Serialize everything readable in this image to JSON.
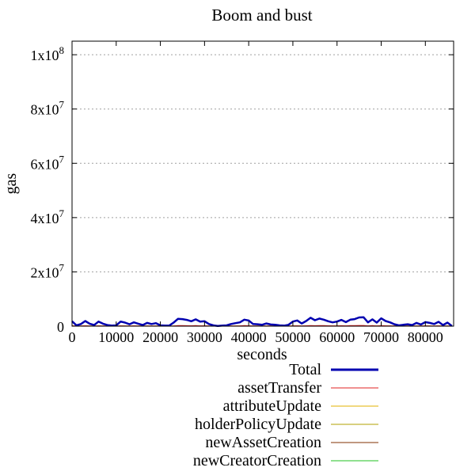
{
  "chart_data": {
    "type": "line",
    "title": "Boom and bust",
    "xlabel": "seconds",
    "ylabel": "gas",
    "xlim": [
      0,
      86400
    ],
    "ylim": [
      0,
      105000000
    ],
    "grid": {
      "y": true,
      "x": false
    },
    "legend_position": "bottom",
    "x_ticks": [
      {
        "value": 0,
        "label": "0"
      },
      {
        "value": 10000,
        "label": "10000"
      },
      {
        "value": 20000,
        "label": "20000"
      },
      {
        "value": 30000,
        "label": "30000"
      },
      {
        "value": 40000,
        "label": "40000"
      },
      {
        "value": 50000,
        "label": "50000"
      },
      {
        "value": 60000,
        "label": "60000"
      },
      {
        "value": 70000,
        "label": "70000"
      },
      {
        "value": 80000,
        "label": "80000"
      }
    ],
    "y_ticks": [
      {
        "value": 0,
        "base": "0",
        "exp": ""
      },
      {
        "value": 20000000,
        "base": "2x10",
        "exp": "7"
      },
      {
        "value": 40000000,
        "base": "4x10",
        "exp": "7"
      },
      {
        "value": 60000000,
        "base": "6x10",
        "exp": "7"
      },
      {
        "value": 80000000,
        "base": "8x10",
        "exp": "7"
      },
      {
        "value": 100000000,
        "base": "1x10",
        "exp": "8"
      }
    ],
    "x": [
      0,
      1000,
      2000,
      3000,
      4000,
      5000,
      6000,
      7000,
      8000,
      9000,
      10000,
      11000,
      12000,
      13000,
      14000,
      15000,
      16000,
      17000,
      18000,
      19000,
      20000,
      21000,
      22000,
      23000,
      24000,
      25000,
      26000,
      27000,
      28000,
      29000,
      30000,
      31000,
      32000,
      33000,
      34000,
      35000,
      36000,
      37000,
      38000,
      39000,
      40000,
      41000,
      42000,
      43000,
      44000,
      45000,
      46000,
      47000,
      48000,
      49000,
      50000,
      51000,
      52000,
      53000,
      54000,
      55000,
      56000,
      57000,
      58000,
      59000,
      60000,
      61000,
      62000,
      63000,
      64000,
      65000,
      66000,
      67000,
      68000,
      69000,
      70000,
      71000,
      72000,
      73000,
      74000,
      75000,
      76000,
      77000,
      78000,
      79000,
      80000,
      81000,
      82000,
      83000,
      84000,
      85000,
      86000
    ],
    "series": [
      {
        "name": "Total",
        "color": "#0000b0",
        "width": 2.5,
        "values": [
          1800000,
          300000,
          800000,
          1900000,
          900000,
          400000,
          1700000,
          900000,
          400000,
          200000,
          300000,
          1700000,
          1300000,
          700000,
          1400000,
          900000,
          400000,
          1200000,
          800000,
          1100000,
          300000,
          200000,
          200000,
          1300000,
          2700000,
          2600000,
          2300000,
          1800000,
          2500000,
          1700000,
          1800000,
          800000,
          300000,
          100000,
          200000,
          300000,
          800000,
          1100000,
          1400000,
          2400000,
          2100000,
          800000,
          700000,
          500000,
          1000000,
          600000,
          500000,
          300000,
          200000,
          500000,
          1700000,
          2100000,
          1000000,
          1900000,
          3100000,
          2200000,
          2800000,
          2400000,
          1800000,
          1400000,
          1700000,
          2300000,
          1500000,
          2400000,
          2600000,
          3200000,
          3300000,
          1400000,
          2500000,
          1300000,
          2900000,
          1900000,
          1400000,
          700000,
          300000,
          500000,
          700000,
          400000,
          1200000,
          600000,
          1500000,
          1200000,
          800000,
          1600000,
          400000,
          1300000,
          100000
        ]
      },
      {
        "name": "assetTransfer",
        "color": "#e02020",
        "width": 1,
        "values": [
          150000,
          20000,
          60000,
          150000,
          70000,
          30000,
          130000,
          70000,
          30000,
          15000,
          20000,
          130000,
          100000,
          50000,
          110000,
          70000,
          30000,
          90000,
          60000,
          85000,
          20000,
          15000,
          15000,
          100000,
          210000,
          200000,
          180000,
          140000,
          190000,
          130000,
          140000,
          60000,
          20000,
          8000,
          15000,
          20000,
          60000,
          85000,
          110000,
          190000,
          160000,
          60000,
          50000,
          40000,
          80000,
          50000,
          40000,
          20000,
          15000,
          40000,
          130000,
          160000,
          80000,
          150000,
          240000,
          170000,
          220000,
          190000,
          140000,
          110000,
          130000,
          180000,
          120000,
          190000,
          200000,
          250000,
          260000,
          110000,
          190000,
          100000,
          230000,
          150000,
          110000,
          50000,
          20000,
          40000,
          50000,
          30000,
          90000,
          50000,
          120000,
          90000,
          60000,
          120000,
          30000,
          100000,
          8000
        ]
      },
      {
        "name": "attributeUpdate",
        "color": "#e0b000",
        "width": 1,
        "values": [
          80000,
          10000,
          30000,
          80000,
          40000,
          15000,
          70000,
          40000,
          15000,
          8000,
          10000,
          70000,
          50000,
          30000,
          60000,
          40000,
          15000,
          50000,
          30000,
          45000,
          10000,
          8000,
          8000,
          50000,
          110000,
          100000,
          90000,
          70000,
          100000,
          70000,
          70000,
          30000,
          10000,
          4000,
          8000,
          10000,
          30000,
          45000,
          60000,
          100000,
          80000,
          30000,
          30000,
          20000,
          40000,
          25000,
          20000,
          10000,
          8000,
          20000,
          70000,
          80000,
          40000,
          80000,
          120000,
          90000,
          110000,
          100000,
          70000,
          60000,
          70000,
          90000,
          60000,
          100000,
          100000,
          130000,
          130000,
          60000,
          100000,
          50000,
          120000,
          80000,
          60000,
          30000,
          10000,
          20000,
          30000,
          15000,
          50000,
          25000,
          60000,
          50000,
          30000,
          60000,
          15000,
          50000,
          4000
        ]
      },
      {
        "name": "holderPolicyUpdate",
        "color": "#b0a000",
        "width": 1,
        "values": [
          50000,
          8000,
          20000,
          50000,
          25000,
          10000,
          45000,
          25000,
          10000,
          5000,
          8000,
          45000,
          35000,
          20000,
          40000,
          25000,
          10000,
          35000,
          20000,
          30000,
          8000,
          5000,
          5000,
          35000,
          70000,
          70000,
          60000,
          50000,
          65000,
          45000,
          45000,
          20000,
          8000,
          3000,
          5000,
          8000,
          20000,
          30000,
          40000,
          65000,
          55000,
          20000,
          20000,
          15000,
          25000,
          15000,
          15000,
          8000,
          5000,
          15000,
          45000,
          55000,
          25000,
          50000,
          80000,
          60000,
          75000,
          65000,
          45000,
          40000,
          45000,
          60000,
          40000,
          65000,
          70000,
          85000,
          85000,
          40000,
          65000,
          35000,
          75000,
          50000,
          40000,
          20000,
          8000,
          15000,
          20000,
          10000,
          30000,
          15000,
          40000,
          30000,
          20000,
          40000,
          10000,
          35000,
          3000
        ]
      },
      {
        "name": "newAssetCreation",
        "color": "#803000",
        "width": 1,
        "values": [
          30000,
          5000,
          12000,
          30000,
          15000,
          6000,
          27000,
          15000,
          6000,
          3000,
          5000,
          27000,
          20000,
          12000,
          22000,
          15000,
          6000,
          20000,
          12000,
          18000,
          5000,
          3000,
          3000,
          20000,
          42000,
          40000,
          36000,
          28000,
          38000,
          27000,
          28000,
          12000,
          5000,
          2000,
          3000,
          5000,
          12000,
          18000,
          22000,
          38000,
          33000,
          12000,
          12000,
          8000,
          15000,
          10000,
          8000,
          5000,
          3000,
          8000,
          27000,
          33000,
          15000,
          30000,
          48000,
          34000,
          44000,
          38000,
          28000,
          22000,
          27000,
          36000,
          24000,
          38000,
          40000,
          50000,
          52000,
          22000,
          38000,
          20000,
          45000,
          30000,
          22000,
          12000,
          5000,
          8000,
          12000,
          6000,
          18000,
          10000,
          24000,
          18000,
          12000,
          25000,
          6000,
          20000,
          2000
        ]
      },
      {
        "name": "newCreatorCreation",
        "color": "#20c020",
        "width": 1,
        "values": [
          15000,
          3000,
          6000,
          15000,
          8000,
          3000,
          14000,
          8000,
          3000,
          2000,
          3000,
          14000,
          10000,
          6000,
          11000,
          8000,
          3000,
          10000,
          6000,
          9000,
          3000,
          2000,
          2000,
          10000,
          21000,
          20000,
          18000,
          14000,
          19000,
          13000,
          14000,
          6000,
          3000,
          1000,
          2000,
          3000,
          6000,
          9000,
          11000,
          19000,
          16000,
          6000,
          6000,
          4000,
          8000,
          5000,
          4000,
          3000,
          2000,
          4000,
          13000,
          16000,
          8000,
          15000,
          24000,
          17000,
          22000,
          19000,
          14000,
          11000,
          13000,
          18000,
          12000,
          19000,
          20000,
          25000,
          26000,
          11000,
          19000,
          10000,
          22000,
          15000,
          11000,
          6000,
          3000,
          4000,
          6000,
          3000,
          9000,
          5000,
          12000,
          9000,
          6000,
          12000,
          3000,
          10000,
          1000
        ]
      }
    ]
  }
}
